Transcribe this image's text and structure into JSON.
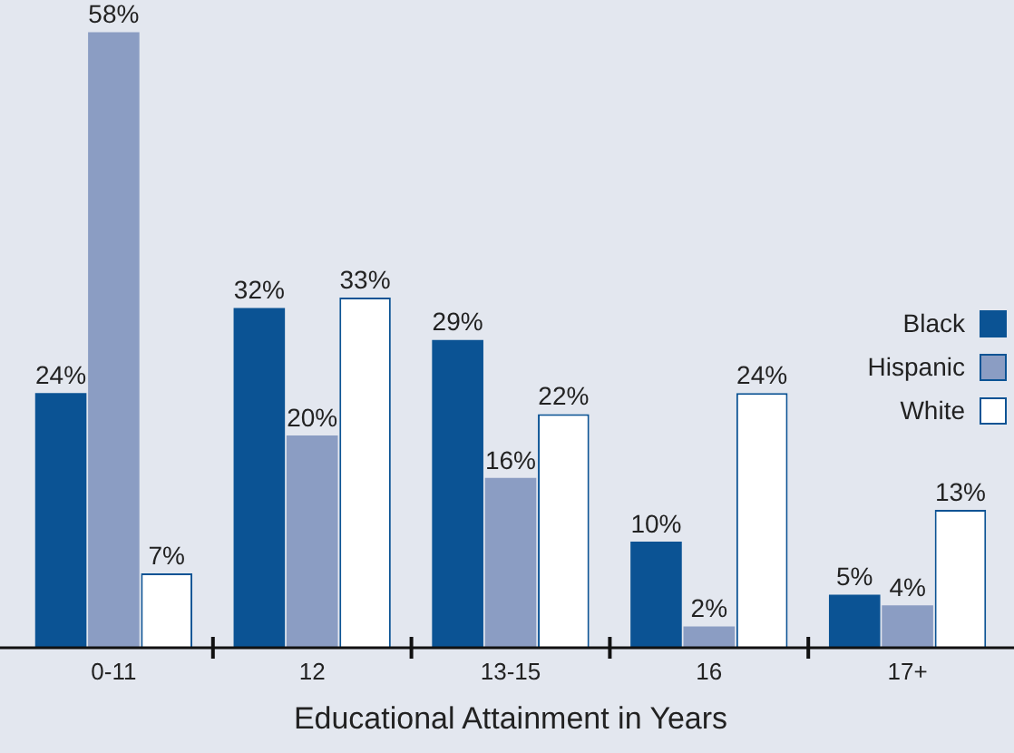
{
  "chart_data": {
    "type": "bar",
    "xlabel": "Educational Attainment in Years",
    "categories": [
      "0-11",
      "12",
      "13-15",
      "16",
      "17+"
    ],
    "series": [
      {
        "name": "Black",
        "color": "#0b5394",
        "values": [
          24,
          32,
          29,
          10,
          5
        ],
        "value_labels": [
          "24%",
          "32%",
          "29%",
          "10%",
          "5%"
        ]
      },
      {
        "name": "Hispanic",
        "color": "#8b9dc3",
        "values": [
          58,
          20,
          16,
          2,
          4
        ],
        "value_labels": [
          "58%",
          "20%",
          "16%",
          "2%",
          "4%"
        ]
      },
      {
        "name": "White",
        "color": "#ffffff",
        "values": [
          7,
          33,
          22,
          24,
          13
        ],
        "value_labels": [
          "7%",
          "33%",
          "22%",
          "24%",
          "13%"
        ]
      }
    ],
    "legend": "right",
    "grid": false
  }
}
